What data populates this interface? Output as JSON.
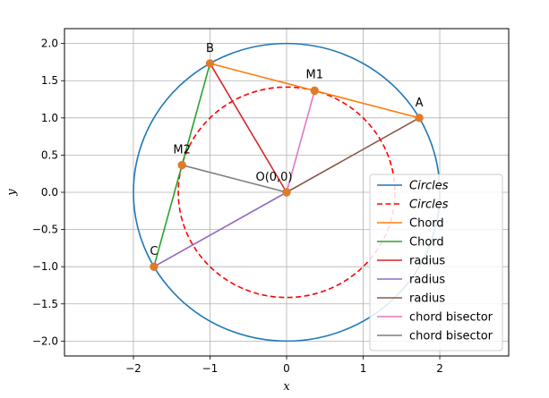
{
  "chart_data": {
    "type": "line",
    "title": "",
    "xlabel": "x",
    "ylabel": "y",
    "xlim": [
      -2.9,
      2.9
    ],
    "ylim": [
      -2.2,
      2.2
    ],
    "xticks": [
      -2,
      -1,
      0,
      1,
      2
    ],
    "yticks": [
      -2.0,
      -1.5,
      -1.0,
      -0.5,
      0.0,
      0.5,
      1.0,
      1.5,
      2.0
    ],
    "xtick_labels": [
      "−2",
      "−1",
      "0",
      "1",
      "2"
    ],
    "ytick_labels": [
      "−2.0",
      "−1.5",
      "−1.0",
      "−0.5",
      "0.0",
      "0.5",
      "1.0",
      "1.5",
      "2.0"
    ],
    "grid": true,
    "legend_position": "lower-right",
    "points": [
      {
        "name": "A",
        "label": "A",
        "x": 1.732,
        "y": 1.0
      },
      {
        "name": "B",
        "label": "B",
        "x": -1.0,
        "y": 1.732
      },
      {
        "name": "C",
        "label": "C",
        "x": -1.732,
        "y": -1.0
      },
      {
        "name": "O",
        "label": "O(0,0)",
        "x": 0.0,
        "y": 0.0
      },
      {
        "name": "M1",
        "label": "M1",
        "x": 0.366,
        "y": 1.366
      },
      {
        "name": "M2",
        "label": "M2",
        "x": -1.366,
        "y": 0.366
      }
    ],
    "series": [
      {
        "name": "Circles",
        "kind": "circle",
        "cx": 0,
        "cy": 0,
        "r": 2.0,
        "color": "#1f77b4",
        "dashed": false,
        "italic": true
      },
      {
        "name": "Circles",
        "kind": "circle",
        "cx": 0,
        "cy": 0,
        "r": 1.414,
        "color": "#ff0000",
        "dashed": true,
        "italic": true
      },
      {
        "name": "Chord",
        "kind": "segment",
        "from": "A",
        "to": "B",
        "color": "#ff7f0e",
        "italic": false
      },
      {
        "name": "Chord",
        "kind": "segment",
        "from": "B",
        "to": "C",
        "color": "#2ca02c",
        "italic": false
      },
      {
        "name": "radius",
        "kind": "segment",
        "from": "O",
        "to": "B",
        "color": "#d62728",
        "italic": false
      },
      {
        "name": "radius",
        "kind": "segment",
        "from": "O",
        "to": "C",
        "color": "#9467bd",
        "italic": false
      },
      {
        "name": "radius",
        "kind": "segment",
        "from": "O",
        "to": "A",
        "color": "#8c564b",
        "italic": false
      },
      {
        "name": "chord bisector",
        "kind": "segment",
        "from": "O",
        "to": "M1",
        "color": "#e377c2",
        "italic": false
      },
      {
        "name": "chord bisector",
        "kind": "segment",
        "from": "O",
        "to": "M2",
        "color": "#7f7f7f",
        "italic": false
      }
    ],
    "marker_color": "#e07b2a"
  }
}
